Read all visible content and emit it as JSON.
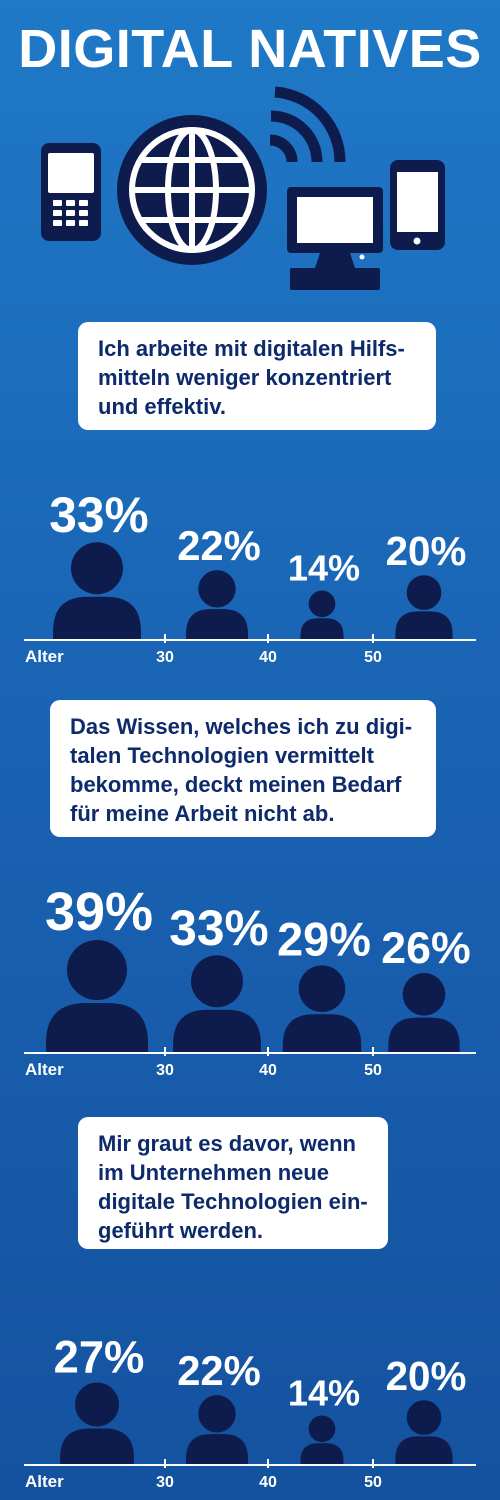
{
  "title": "DIGITAL NATIVES",
  "hero_icons": [
    "feature-phone-icon",
    "globe-icon",
    "wifi-signal-icon",
    "desktop-monitor-icon",
    "smartphone-icon"
  ],
  "colors": {
    "background": "#1a64b4",
    "person": "#0d1b4d",
    "bubble": "#ffffff",
    "bubble_text": "#0d2a6b",
    "axis": "#ffffff"
  },
  "chart_data": [
    {
      "type": "bar",
      "statement": "Ich arbeite mit digitalen Hilfs-\nmitteln weniger konzentriert\nund effektiv.",
      "axis_label": "Alter",
      "ticks": [
        "30",
        "40",
        "50"
      ],
      "values": [
        33,
        22,
        14,
        20
      ],
      "value_labels": [
        "33%",
        "22%",
        "14%",
        "20%"
      ],
      "unit": "%"
    },
    {
      "type": "bar",
      "statement": "Das Wissen, welches ich zu digi-\ntalen Technologien vermittelt\nbekomme, deckt meinen Bedarf\nfür meine Arbeit nicht ab.",
      "axis_label": "Alter",
      "ticks": [
        "30",
        "40",
        "50"
      ],
      "values": [
        39,
        33,
        29,
        26
      ],
      "value_labels": [
        "39%",
        "33%",
        "29%",
        "26%"
      ],
      "unit": "%"
    },
    {
      "type": "bar",
      "statement": "Mir graut es davor, wenn\nim Unternehmen neue\ndigitale Technologien ein-\ngeführt werden.",
      "axis_label": "Alter",
      "ticks": [
        "30",
        "40",
        "50"
      ],
      "values": [
        27,
        22,
        14,
        20
      ],
      "value_labels": [
        "27%",
        "22%",
        "14%",
        "20%"
      ],
      "unit": "%"
    }
  ]
}
